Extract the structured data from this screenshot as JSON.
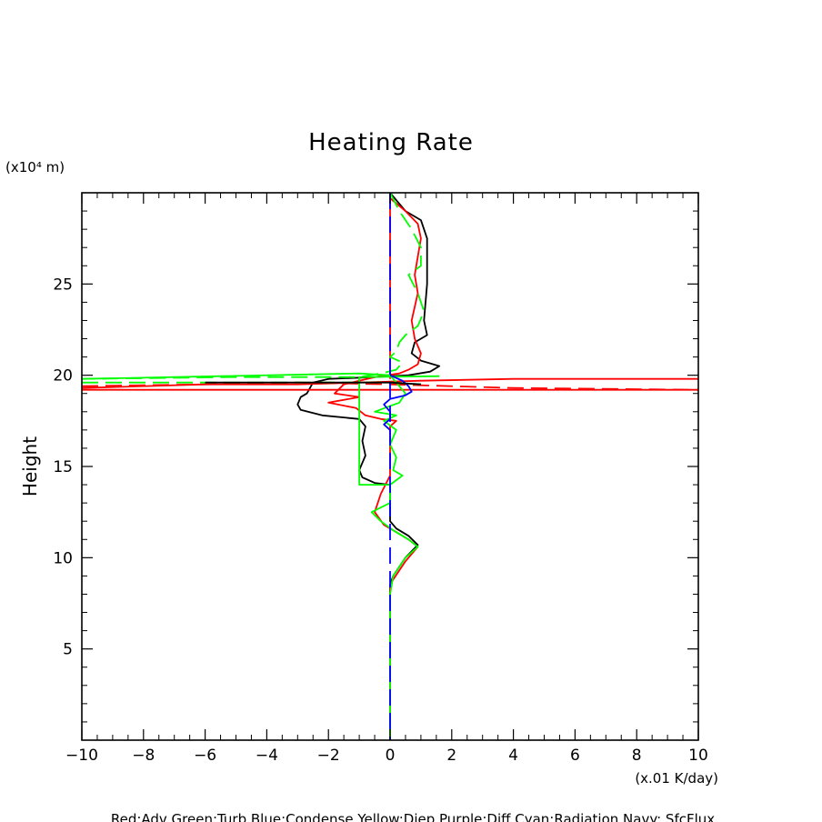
{
  "chart_data": {
    "type": "line",
    "title": "Heating Rate",
    "xlabel": "",
    "x_unit": "(x.01 K/day)",
    "ylabel": "Height",
    "y_unit": "(x10⁴ m)",
    "xlim": [
      -10,
      10
    ],
    "ylim": [
      0,
      30
    ],
    "xticks": [
      -10,
      -8,
      -6,
      -4,
      -2,
      0,
      2,
      4,
      6,
      8,
      10
    ],
    "yticks": [
      5,
      10,
      15,
      20,
      25
    ],
    "grid": false,
    "legend_text": "Red:Adv  Green:Turb  Blue:Condense  Yellow:Diep  Purple:Diff  Cyan:Radiation  Navy: SfcFlux",
    "colors": {
      "black": "#000000",
      "red": "#ff0000",
      "green": "#00ff00",
      "blue": "#0000ff"
    },
    "series": [
      {
        "color": "#000000",
        "dash": false,
        "points": [
          [
            0,
            30
          ],
          [
            0.5,
            29
          ],
          [
            1.0,
            28.5
          ],
          [
            1.2,
            27.5
          ],
          [
            1.2,
            25
          ],
          [
            1.1,
            23
          ],
          [
            1.2,
            22.2
          ],
          [
            0.8,
            21.8
          ],
          [
            0.7,
            21.2
          ],
          [
            1.0,
            20.8
          ],
          [
            1.6,
            20.5
          ],
          [
            1.3,
            20.2
          ],
          [
            0.6,
            20.0
          ],
          [
            -0.5,
            19.9
          ],
          [
            -2.0,
            19.8
          ],
          [
            -2.5,
            19.6
          ],
          [
            -2.6,
            19.3
          ],
          [
            -2.7,
            19.0
          ],
          [
            -2.9,
            18.8
          ],
          [
            -3.0,
            18.4
          ],
          [
            -2.9,
            18.1
          ],
          [
            -2.2,
            17.8
          ],
          [
            -1.0,
            17.6
          ],
          [
            -0.8,
            17.2
          ],
          [
            -0.9,
            16.4
          ],
          [
            -0.8,
            15.6
          ],
          [
            -1.0,
            14.8
          ],
          [
            -0.9,
            14.4
          ],
          [
            -0.5,
            14.1
          ],
          [
            0,
            14.0
          ],
          [
            0,
            12.0
          ],
          [
            0.2,
            11.6
          ],
          [
            0.6,
            11.2
          ],
          [
            0.9,
            10.7
          ],
          [
            0.5,
            10.0
          ],
          [
            0.1,
            9.0
          ],
          [
            0,
            8.5
          ],
          [
            0,
            0
          ]
        ]
      },
      {
        "color": "#ff0000",
        "dash": false,
        "points": [
          [
            0,
            29.7
          ],
          [
            0.5,
            29
          ],
          [
            0.9,
            28.3
          ],
          [
            1.0,
            27.5
          ],
          [
            0.8,
            25.5
          ],
          [
            0.9,
            24.5
          ],
          [
            0.7,
            23
          ],
          [
            0.8,
            22
          ],
          [
            1.0,
            21.2
          ],
          [
            0.9,
            20.6
          ],
          [
            0.6,
            20.3
          ],
          [
            0.3,
            20.1
          ],
          [
            -0.5,
            19.9
          ],
          [
            -1.5,
            19.5
          ],
          [
            -1.8,
            19.0
          ],
          [
            -1.0,
            18.8
          ],
          [
            -2.0,
            18.5
          ],
          [
            -1.1,
            18.2
          ],
          [
            -0.8,
            17.8
          ],
          [
            -0.3,
            17.6
          ],
          [
            0.2,
            17.5
          ],
          [
            0,
            17.2
          ],
          [
            0,
            14.5
          ],
          [
            -0.3,
            13.5
          ],
          [
            -0.5,
            12.5
          ],
          [
            -0.2,
            11.8
          ],
          [
            0.2,
            11.4
          ],
          [
            0.6,
            11.0
          ],
          [
            0.9,
            10.6
          ],
          [
            0.5,
            9.8
          ],
          [
            0.1,
            8.8
          ],
          [
            0,
            8.5
          ],
          [
            0,
            0
          ]
        ]
      },
      {
        "color": "#ff0000",
        "dash": false,
        "points": [
          [
            0,
            30
          ],
          [
            0,
            19.8
          ]
        ]
      },
      {
        "color": "#ff0000",
        "dash": false,
        "points": [
          [
            -10,
            19.3
          ],
          [
            -6,
            19.5
          ],
          [
            -3,
            19.5
          ],
          [
            1,
            19.7
          ],
          [
            4,
            19.8
          ],
          [
            10,
            19.8
          ]
        ]
      },
      {
        "color": "#ff0000",
        "dash": false,
        "points": [
          [
            -10,
            19.2
          ],
          [
            10,
            19.2
          ]
        ]
      },
      {
        "color": "#ff0000",
        "dash": true,
        "points": [
          [
            -10,
            19.4
          ],
          [
            -6,
            19.5
          ],
          [
            -3,
            19.6
          ],
          [
            0,
            19.5
          ],
          [
            4,
            19.3
          ],
          [
            10,
            19.2
          ]
        ]
      },
      {
        "color": "#00ff00",
        "dash": true,
        "points": [
          [
            0,
            30
          ],
          [
            0.3,
            29
          ],
          [
            0.7,
            28
          ],
          [
            1.0,
            27
          ],
          [
            1.0,
            26
          ],
          [
            0.6,
            25.5
          ],
          [
            0.9,
            24.5
          ],
          [
            1.1,
            23.5
          ],
          [
            0.9,
            22.7
          ],
          [
            0.5,
            22.2
          ],
          [
            0.3,
            21.8
          ],
          [
            0.2,
            21.3
          ],
          [
            0.0,
            21.0
          ],
          [
            0.4,
            20.7
          ],
          [
            0.2,
            20.3
          ],
          [
            -0.3,
            20.1
          ],
          [
            -1.0,
            19.9
          ],
          [
            -5,
            19.9
          ],
          [
            -10,
            19.8
          ]
        ]
      },
      {
        "color": "#00ff00",
        "dash": true,
        "points": [
          [
            -10,
            19.6
          ],
          [
            -4,
            19.6
          ],
          [
            0,
            19.6
          ],
          [
            1,
            19.5
          ]
        ]
      },
      {
        "color": "#00ff00",
        "dash": false,
        "points": [
          [
            1.6,
            19.95
          ],
          [
            -1.0,
            19.9
          ],
          [
            -1.0,
            14.0
          ],
          [
            0,
            14.0
          ],
          [
            0.4,
            14.5
          ],
          [
            0.1,
            14.8
          ],
          [
            0.2,
            15.5
          ],
          [
            0,
            16.2
          ],
          [
            0.2,
            17.0
          ],
          [
            -0.2,
            17.5
          ],
          [
            0.2,
            17.8
          ],
          [
            -0.5,
            18.0
          ],
          [
            0.3,
            18.5
          ],
          [
            0.5,
            19.0
          ],
          [
            0.2,
            19.6
          ],
          [
            0,
            20.0
          ],
          [
            -1.0,
            20.1
          ],
          [
            -10,
            19.8
          ]
        ]
      },
      {
        "color": "#00ff00",
        "dash": false,
        "points": [
          [
            0,
            14.0
          ],
          [
            0,
            13.0
          ],
          [
            -0.6,
            12.5
          ],
          [
            -0.3,
            12.0
          ],
          [
            0.1,
            11.5
          ],
          [
            0.6,
            11.0
          ],
          [
            0.9,
            10.6
          ],
          [
            0.5,
            10.0
          ],
          [
            0.1,
            9.0
          ],
          [
            0,
            8.0
          ],
          [
            0,
            0
          ]
        ]
      },
      {
        "color": "#0000ff",
        "dash": true,
        "points": [
          [
            0,
            30
          ],
          [
            0,
            0
          ]
        ]
      },
      {
        "color": "#0000ff",
        "dash": false,
        "points": [
          [
            0,
            20.0
          ],
          [
            0.4,
            19.7
          ],
          [
            0.6,
            19.4
          ],
          [
            0.7,
            19.1
          ],
          [
            0.5,
            18.9
          ],
          [
            0,
            18.7
          ],
          [
            -0.2,
            18.4
          ],
          [
            0,
            18.0
          ],
          [
            0,
            17.6
          ],
          [
            -0.2,
            17.3
          ],
          [
            0,
            17.0
          ]
        ]
      },
      {
        "color": "#000000",
        "dash": false,
        "points": [
          [
            -6,
            19.6
          ],
          [
            -3,
            19.6
          ],
          [
            0,
            19.6
          ],
          [
            1,
            19.5
          ]
        ]
      }
    ]
  }
}
